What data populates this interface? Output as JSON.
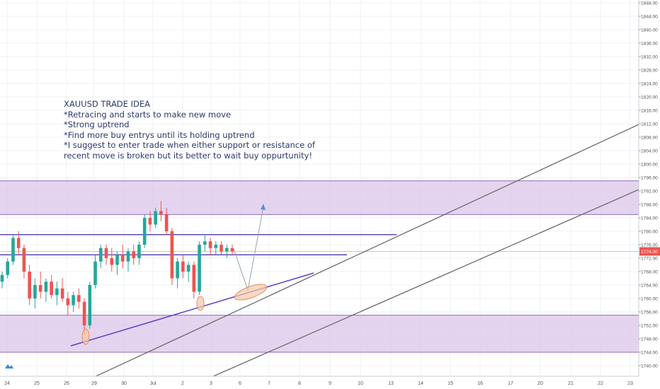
{
  "chart_data": {
    "type": "candlestick",
    "title": "",
    "symbol": "XAUUSD",
    "y_range": [
      1738.0,
      1848.0
    ],
    "y_ticks": [
      "1740.00",
      "1744.00",
      "1748.00",
      "1752.00",
      "1756.00",
      "1760.00",
      "1764.00",
      "1768.00",
      "1772.00",
      "1776.00",
      "1780.00",
      "1784.00",
      "1788.00",
      "1792.00",
      "1796.00",
      "1800.00",
      "1804.00",
      "1808.00",
      "1812.00",
      "1816.00",
      "1820.00",
      "1824.00",
      "1828.00",
      "1832.00",
      "1836.00",
      "1840.00",
      "1844.00",
      "1848.00"
    ],
    "x_ticks": [
      "24",
      "25",
      "26",
      "29",
      "30",
      "Jul",
      "2",
      "3",
      "6",
      "7",
      "8",
      "9",
      "10",
      "13",
      "14",
      "15",
      "16",
      "17",
      "20",
      "21",
      "22",
      "23"
    ],
    "current_price": "1774.00",
    "price_series": [
      [
        1765,
        1768,
        1763,
        1767
      ],
      [
        1767,
        1772,
        1766,
        1771
      ],
      [
        1771,
        1779,
        1770,
        1778
      ],
      [
        1778,
        1780,
        1773,
        1775
      ],
      [
        1775,
        1776,
        1766,
        1768
      ],
      [
        1768,
        1770,
        1758,
        1760
      ],
      [
        1760,
        1766,
        1757,
        1764
      ],
      [
        1764,
        1768,
        1760,
        1762
      ],
      [
        1762,
        1766,
        1759,
        1765
      ],
      [
        1765,
        1767,
        1760,
        1761
      ],
      [
        1761,
        1765,
        1758,
        1763
      ],
      [
        1763,
        1766,
        1759,
        1760
      ],
      [
        1760,
        1762,
        1755,
        1758
      ],
      [
        1758,
        1762,
        1756,
        1761
      ],
      [
        1761,
        1763,
        1757,
        1759
      ],
      [
        1759,
        1760,
        1749,
        1752
      ],
      [
        1752,
        1765,
        1751,
        1764
      ],
      [
        1764,
        1773,
        1763,
        1771
      ],
      [
        1771,
        1776,
        1769,
        1775
      ],
      [
        1775,
        1776,
        1770,
        1772
      ],
      [
        1772,
        1775,
        1768,
        1770
      ],
      [
        1770,
        1774,
        1767,
        1773
      ],
      [
        1773,
        1776,
        1769,
        1771
      ],
      [
        1771,
        1775,
        1768,
        1774
      ],
      [
        1774,
        1776,
        1770,
        1772
      ],
      [
        1772,
        1777,
        1770,
        1776
      ],
      [
        1776,
        1785,
        1775,
        1784
      ],
      [
        1784,
        1786,
        1780,
        1782
      ],
      [
        1782,
        1787,
        1781,
        1786
      ],
      [
        1786,
        1789,
        1783,
        1785
      ],
      [
        1785,
        1787,
        1779,
        1780
      ],
      [
        1780,
        1781,
        1764,
        1766
      ],
      [
        1766,
        1772,
        1763,
        1771
      ],
      [
        1771,
        1773,
        1766,
        1768
      ],
      [
        1768,
        1771,
        1765,
        1770
      ],
      [
        1770,
        1771,
        1760,
        1762
      ],
      [
        1762,
        1777,
        1761,
        1776
      ],
      [
        1776,
        1779,
        1774,
        1777
      ],
      [
        1777,
        1778,
        1773,
        1775
      ],
      [
        1775,
        1777,
        1773,
        1776
      ],
      [
        1776,
        1777,
        1773,
        1774
      ],
      [
        1774,
        1776,
        1772,
        1775
      ],
      [
        1775,
        1776,
        1773,
        1774
      ]
    ],
    "annotations": [
      "XAUUSD TRADE IDEA",
      "",
      "*Retracing and starts to make new move",
      "*Strong uptrend",
      "*Find more buy entrys until its holding uptrend",
      "*I suggest to enter trade when either support or resistance of",
      "recent move is broken but its better to wait buy oppurtunity!"
    ],
    "zones": [
      [
        1785.0,
        1795.0
      ],
      [
        1744.0,
        1755.0
      ]
    ],
    "horizontal_lines": [
      1779.0,
      1773.0
    ],
    "colors": {
      "up": "#26a69a",
      "down": "#ef5350",
      "zone_fill": "#dcc6ea",
      "zone_border": "#6d3fa0",
      "level_line": "#3f2aa8",
      "trend_line": "#5a3ec8",
      "channel_line": "#6b6b6b",
      "arrow": "#5b8fd6",
      "ellipse_fill": "#f3c9a8",
      "ellipse_stroke": "#e09060",
      "price_label_bg": "#ef5350"
    }
  }
}
